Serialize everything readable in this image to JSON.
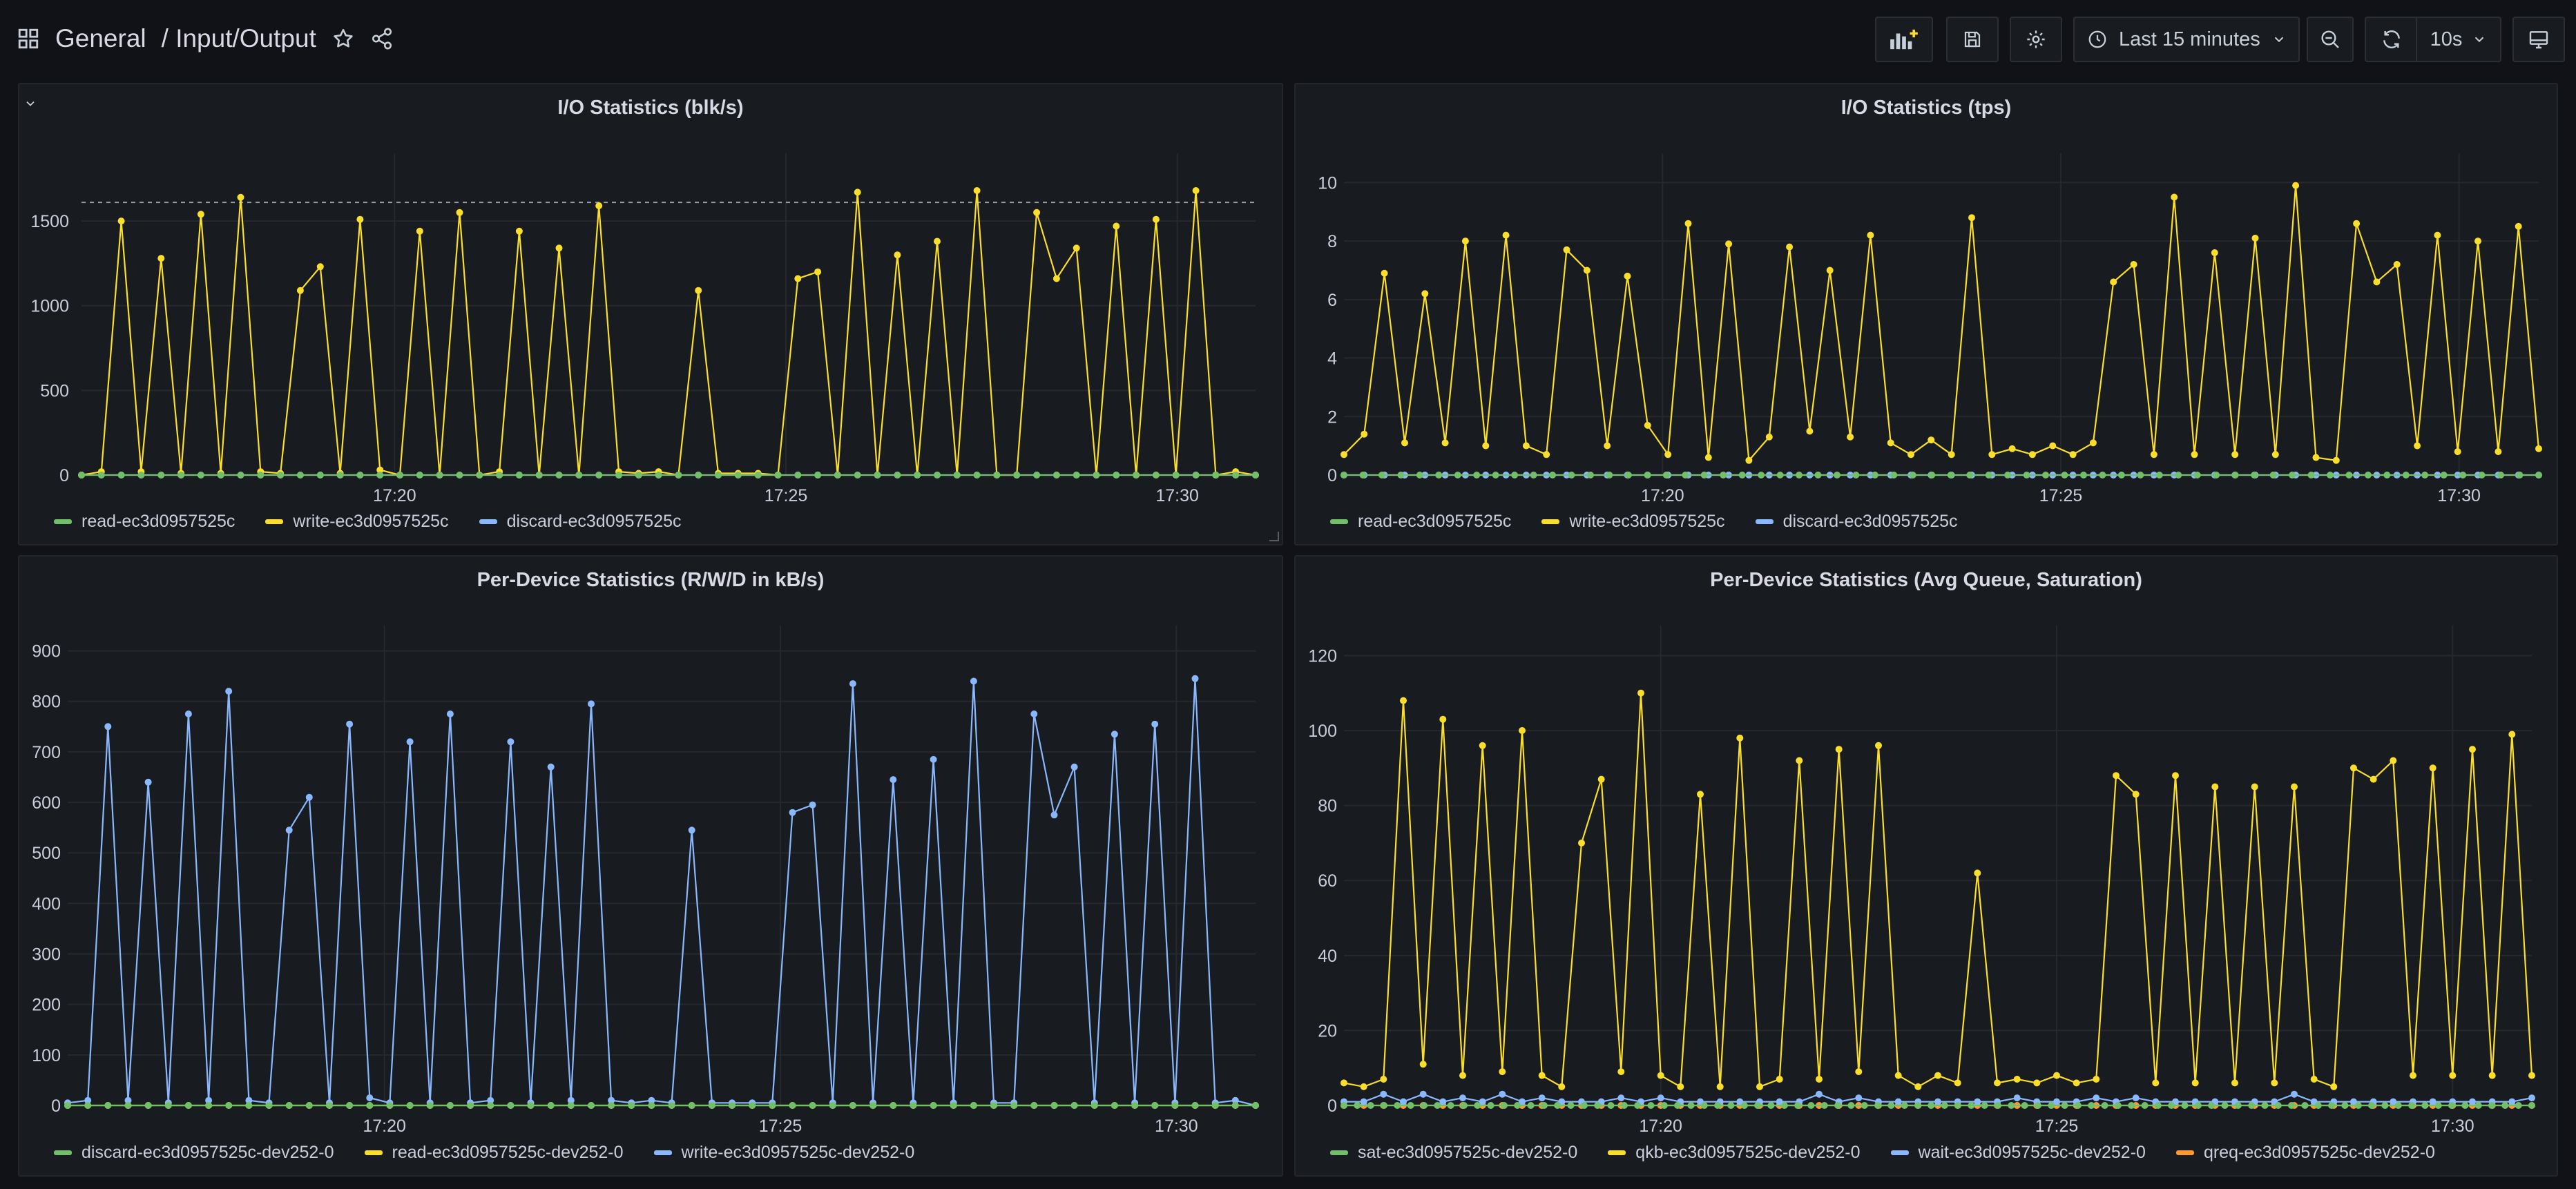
{
  "header": {
    "folder": "General",
    "title": "/ Input/Output",
    "time_range": "Last 15 minutes",
    "refresh_interval": "10s",
    "icons": [
      "apps-icon",
      "star-icon",
      "share-icon",
      "add-panel-icon",
      "save-icon",
      "settings-icon",
      "clock-icon",
      "chevron-down-icon",
      "zoom-out-icon",
      "refresh-icon",
      "tv-mode-icon"
    ]
  },
  "panels": [
    {
      "id": "io-blk",
      "title": "I/O Statistics (blk/s)",
      "has_menu_chevron": true,
      "legend": [
        {
          "name": "read-ec3d0957525c",
          "color": "#73bf69"
        },
        {
          "name": "write-ec3d0957525c",
          "color": "#fade2a"
        },
        {
          "name": "discard-ec3d0957525c",
          "color": "#8ab8ff"
        }
      ]
    },
    {
      "id": "io-tps",
      "title": "I/O Statistics (tps)",
      "has_menu_chevron": false,
      "legend": [
        {
          "name": "read-ec3d0957525c",
          "color": "#73bf69"
        },
        {
          "name": "write-ec3d0957525c",
          "color": "#fade2a"
        },
        {
          "name": "discard-ec3d0957525c",
          "color": "#8ab8ff"
        }
      ]
    },
    {
      "id": "per-dev-rwd",
      "title": "Per-Device Statistics (R/W/D in kB/s)",
      "has_menu_chevron": false,
      "legend": [
        {
          "name": "discard-ec3d0957525c-dev252-0",
          "color": "#73bf69"
        },
        {
          "name": "read-ec3d0957525c-dev252-0",
          "color": "#fade2a"
        },
        {
          "name": "write-ec3d0957525c-dev252-0",
          "color": "#8ab8ff"
        }
      ]
    },
    {
      "id": "per-dev-queue",
      "title": "Per-Device Statistics (Avg Queue, Saturation)",
      "has_menu_chevron": false,
      "legend": [
        {
          "name": "sat-ec3d0957525c-dev252-0",
          "color": "#73bf69"
        },
        {
          "name": "qkb-ec3d0957525c-dev252-0",
          "color": "#fade2a"
        },
        {
          "name": "wait-ec3d0957525c-dev252-0",
          "color": "#8ab8ff"
        },
        {
          "name": "qreq-ec3d0957525c-dev252-0",
          "color": "#ff9830"
        }
      ]
    }
  ],
  "chart_data": [
    {
      "type": "line",
      "title": "I/O Statistics (blk/s)",
      "x_start": "17:16:00",
      "x_end": "17:31:00",
      "x_ticks": [
        "17:20",
        "17:25",
        "17:30"
      ],
      "y_ticks": [
        0,
        500,
        1000,
        1500
      ],
      "ylim": [
        0,
        1900
      ],
      "threshold": 1610,
      "series": [
        {
          "name": "read-ec3d0957525c",
          "color": "#73bf69",
          "values": [
            0,
            0,
            0,
            0,
            0,
            0,
            0,
            0,
            0,
            0,
            0,
            0,
            0,
            0,
            0,
            0,
            0,
            0,
            0,
            0,
            0,
            0,
            0,
            0,
            0,
            0,
            0,
            0,
            0,
            0,
            0,
            0,
            0,
            0,
            0,
            0,
            0,
            0,
            0,
            0,
            0,
            0,
            0,
            0,
            0,
            0,
            0,
            0,
            0,
            0,
            0,
            0,
            0,
            0,
            0,
            0,
            0,
            0,
            0,
            0
          ]
        },
        {
          "name": "write-ec3d0957525c",
          "color": "#fade2a",
          "values": [
            0,
            20,
            1500,
            20,
            1280,
            10,
            1540,
            10,
            1640,
            20,
            10,
            1090,
            1230,
            10,
            1510,
            30,
            0,
            1440,
            0,
            1550,
            0,
            20,
            1440,
            0,
            1340,
            0,
            1590,
            20,
            10,
            20,
            0,
            1090,
            10,
            10,
            10,
            0,
            1160,
            1200,
            0,
            1670,
            0,
            1300,
            0,
            1380,
            0,
            1680,
            0,
            0,
            1550,
            1160,
            1340,
            0,
            1470,
            0,
            1510,
            0,
            1680,
            0,
            20,
            0
          ]
        },
        {
          "name": "discard-ec3d0957525c",
          "color": "#8ab8ff",
          "values": [
            0,
            0,
            0,
            0,
            0,
            0,
            0,
            0,
            0,
            0,
            0,
            0,
            0,
            0,
            0,
            0,
            0,
            0,
            0,
            0,
            0,
            0,
            0,
            0,
            0,
            0,
            0,
            0,
            0,
            0,
            0,
            0,
            0,
            0,
            0,
            0,
            0,
            0,
            0,
            0,
            0,
            0,
            0,
            0,
            0,
            0,
            0,
            0,
            0,
            0,
            0,
            0,
            0,
            0,
            0,
            0,
            0,
            0,
            0,
            0
          ]
        }
      ]
    },
    {
      "type": "line",
      "title": "I/O Statistics (tps)",
      "x_start": "17:16:00",
      "x_end": "17:31:00",
      "x_ticks": [
        "17:20",
        "17:25",
        "17:30"
      ],
      "y_ticks": [
        0,
        2,
        4,
        6,
        8,
        10
      ],
      "ylim": [
        0,
        11
      ],
      "series": [
        {
          "name": "read-ec3d0957525c",
          "color": "#73bf69",
          "values": [
            0,
            0,
            0,
            0,
            0,
            0,
            0,
            0,
            0,
            0,
            0,
            0,
            0,
            0,
            0,
            0,
            0,
            0,
            0,
            0,
            0,
            0,
            0,
            0,
            0,
            0,
            0,
            0,
            0,
            0,
            0,
            0,
            0,
            0,
            0,
            0,
            0,
            0,
            0,
            0,
            0,
            0,
            0,
            0,
            0,
            0,
            0,
            0,
            0,
            0,
            0,
            0,
            0,
            0,
            0,
            0,
            0,
            0,
            0,
            0,
            0,
            0,
            0,
            0
          ]
        },
        {
          "name": "write-ec3d0957525c",
          "color": "#fade2a",
          "values": [
            0.7,
            1.4,
            6.9,
            1.1,
            6.2,
            1.1,
            8.0,
            1.0,
            8.2,
            1.0,
            0.7,
            7.7,
            7.0,
            1.0,
            6.8,
            1.7,
            0.7,
            8.6,
            0.6,
            7.9,
            0.5,
            1.3,
            7.8,
            1.5,
            7.0,
            1.3,
            8.2,
            1.1,
            0.7,
            1.2,
            0.7,
            8.8,
            0.7,
            0.9,
            0.7,
            1.0,
            0.7,
            1.1,
            6.6,
            7.2,
            0.7,
            9.5,
            0.7,
            7.6,
            0.7,
            8.1,
            0.7,
            9.9,
            0.6,
            0.5,
            8.6,
            6.6,
            7.2,
            1.0,
            8.2,
            0.8,
            8.0,
            0.8,
            8.5,
            0.9
          ]
        },
        {
          "name": "discard-ec3d0957525c",
          "color": "#8ab8ff",
          "values": [
            0,
            0,
            0,
            0,
            0,
            0,
            0,
            0,
            0,
            0,
            0,
            0,
            0,
            0,
            0,
            0,
            0,
            0,
            0,
            0,
            0,
            0,
            0,
            0,
            0,
            0,
            0,
            0,
            0,
            0,
            0,
            0,
            0,
            0,
            0,
            0,
            0,
            0,
            0,
            0,
            0,
            0,
            0,
            0,
            0,
            0,
            0,
            0,
            0,
            0,
            0,
            0,
            0,
            0,
            0,
            0,
            0,
            0,
            0,
            0
          ]
        }
      ]
    },
    {
      "type": "line",
      "title": "Per-Device Statistics (R/W/D in kB/s)",
      "x_start": "17:16:00",
      "x_end": "17:31:00",
      "x_ticks": [
        "17:20",
        "17:25",
        "17:30"
      ],
      "y_ticks": [
        0,
        100,
        200,
        300,
        400,
        500,
        600,
        700,
        800,
        900
      ],
      "ylim": [
        0,
        950
      ],
      "series": [
        {
          "name": "discard-ec3d0957525c-dev252-0",
          "color": "#73bf69",
          "values": [
            0,
            0,
            0,
            0,
            0,
            0,
            0,
            0,
            0,
            0,
            0,
            0,
            0,
            0,
            0,
            0,
            0,
            0,
            0,
            0,
            0,
            0,
            0,
            0,
            0,
            0,
            0,
            0,
            0,
            0,
            0,
            0,
            0,
            0,
            0,
            0,
            0,
            0,
            0,
            0,
            0,
            0,
            0,
            0,
            0,
            0,
            0,
            0,
            0,
            0,
            0,
            0,
            0,
            0,
            0,
            0,
            0,
            0,
            0,
            0
          ]
        },
        {
          "name": "read-ec3d0957525c-dev252-0",
          "color": "#fade2a",
          "values": [
            0,
            0,
            0,
            0,
            0,
            0,
            0,
            0,
            0,
            0,
            0,
            0,
            0,
            0,
            0,
            0,
            0,
            0,
            0,
            0,
            0,
            0,
            0,
            0,
            0,
            0,
            0,
            0,
            0,
            0,
            0,
            0,
            0,
            0,
            0,
            0,
            0,
            0,
            0,
            0,
            0,
            0,
            0,
            0,
            0,
            0,
            0,
            0,
            0,
            0,
            0,
            0,
            0,
            0,
            0,
            0,
            0,
            0,
            0,
            0
          ]
        },
        {
          "name": "write-ec3d0957525c-dev252-0",
          "color": "#8ab8ff",
          "values": [
            5,
            10,
            750,
            10,
            640,
            5,
            775,
            10,
            820,
            10,
            5,
            545,
            610,
            5,
            755,
            15,
            5,
            720,
            5,
            775,
            5,
            10,
            720,
            5,
            670,
            10,
            795,
            10,
            5,
            10,
            5,
            545,
            5,
            5,
            5,
            5,
            580,
            595,
            5,
            835,
            5,
            645,
            5,
            685,
            5,
            840,
            5,
            5,
            775,
            575,
            670,
            5,
            735,
            5,
            755,
            5,
            845,
            5,
            10,
            0
          ]
        }
      ]
    },
    {
      "type": "line",
      "title": "Per-Device Statistics (Avg Queue, Saturation)",
      "x_start": "17:16:00",
      "x_end": "17:31:00",
      "x_ticks": [
        "17:20",
        "17:25",
        "17:30"
      ],
      "y_ticks": [
        0,
        20,
        40,
        60,
        80,
        100,
        120
      ],
      "ylim": [
        0,
        128
      ],
      "series": [
        {
          "name": "sat-ec3d0957525c-dev252-0",
          "color": "#73bf69",
          "values": [
            0,
            0,
            0,
            0,
            0,
            0,
            0,
            0,
            0,
            0,
            0,
            0,
            0,
            0,
            0,
            0,
            0,
            0,
            0,
            0,
            0,
            0,
            0,
            0,
            0,
            0,
            0,
            0,
            0,
            0,
            0,
            0,
            0,
            0,
            0,
            0,
            0,
            0,
            0,
            0,
            0,
            0,
            0,
            0,
            0,
            0,
            0,
            0,
            0,
            0,
            0,
            0,
            0,
            0,
            0,
            0,
            0,
            0,
            0,
            0,
            0,
            0,
            0,
            0,
            0,
            0,
            0,
            0,
            0,
            0,
            0,
            0,
            0,
            0,
            0,
            0,
            0,
            0,
            0,
            0,
            0,
            0,
            0,
            0,
            0,
            0,
            0,
            0,
            0,
            0
          ]
        },
        {
          "name": "qkb-ec3d0957525c-dev252-0",
          "color": "#fade2a",
          "values": [
            6,
            5,
            7,
            108,
            11,
            103,
            8,
            96,
            9,
            100,
            8,
            5,
            70,
            87,
            9,
            110,
            8,
            5,
            83,
            5,
            98,
            5,
            7,
            92,
            7,
            95,
            9,
            96,
            8,
            5,
            8,
            6,
            62,
            6,
            7,
            6,
            8,
            6,
            7,
            88,
            83,
            6,
            88,
            6,
            85,
            6,
            85,
            6,
            85,
            7,
            5,
            90,
            87,
            92,
            8,
            90,
            8,
            95,
            8,
            99,
            8
          ]
        },
        {
          "name": "wait-ec3d0957525c-dev252-0",
          "color": "#8ab8ff",
          "values": [
            1,
            1,
            3,
            1,
            3,
            1,
            2,
            1,
            3,
            1,
            2,
            1,
            1,
            1,
            2,
            1,
            2,
            1,
            1,
            1,
            1,
            1,
            1,
            1,
            3,
            1,
            2,
            1,
            1,
            1,
            1,
            1,
            1,
            1,
            2,
            1,
            1,
            1,
            2,
            1,
            2,
            1,
            1,
            1,
            1,
            1,
            1,
            1,
            3,
            1,
            1,
            1,
            1,
            1,
            1,
            1,
            1,
            1,
            1,
            1,
            2
          ]
        },
        {
          "name": "qreq-ec3d0957525c-dev252-0",
          "color": "#ff9830",
          "values": [
            0,
            0,
            0,
            0,
            0,
            0,
            0,
            0,
            0,
            0,
            0,
            0,
            0,
            0,
            0,
            0,
            0,
            0,
            0,
            0,
            0,
            0,
            0,
            0,
            0,
            0,
            0,
            0,
            0,
            0,
            0,
            0,
            0,
            0,
            0,
            0,
            0,
            0,
            0,
            0,
            0,
            0,
            0,
            0,
            0,
            0,
            0,
            0,
            0,
            0,
            0,
            0,
            0,
            0,
            0,
            0,
            0,
            0,
            0,
            0,
            0
          ]
        }
      ]
    }
  ]
}
